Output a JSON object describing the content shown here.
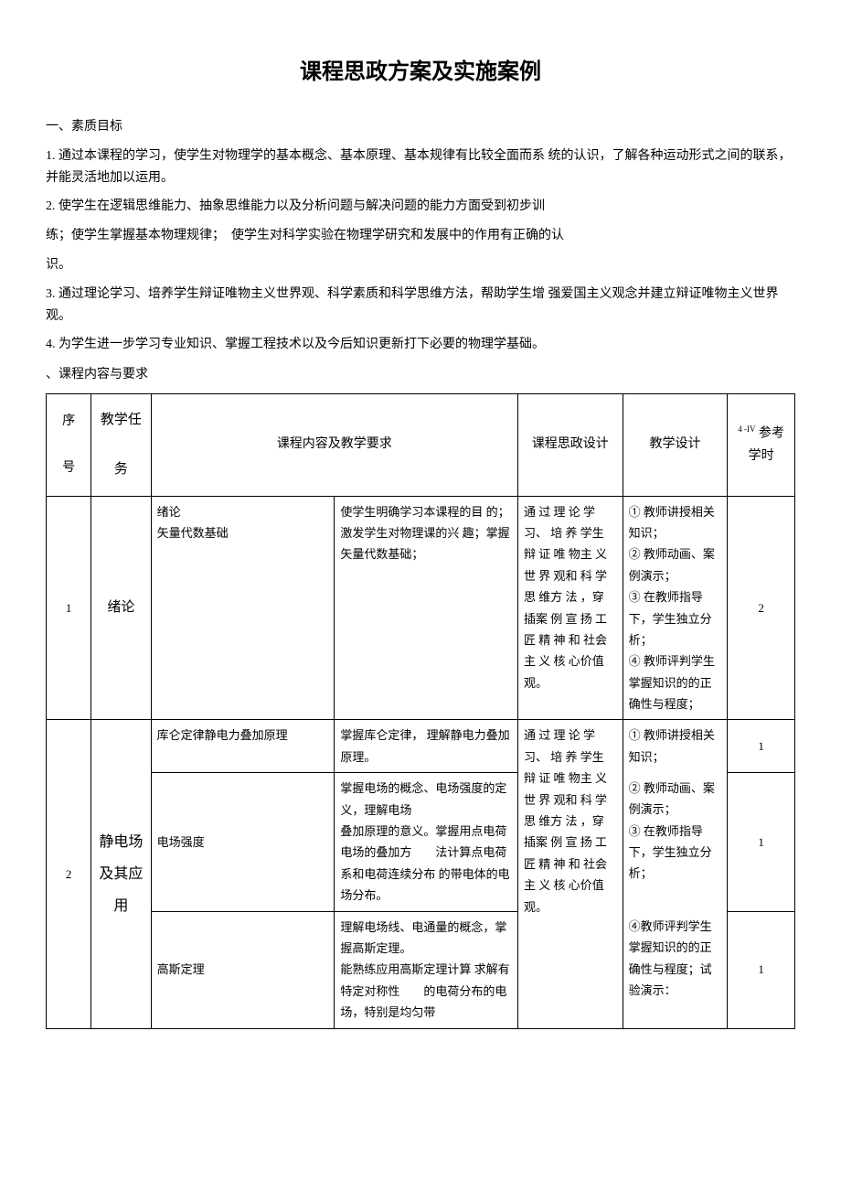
{
  "title": "课程思政方案及实施案例",
  "sections": {
    "s1_heading": "一、素质目标",
    "p1": "1. 通过本课程的学习，使学生对物理学的基本概念、基本原理、基本规律有比较全面而系 统的认识，了解各种运动形式之间的联系，并能灵活地加以运用。",
    "p2": "2. 使学生在逻辑思维能力、抽象思维能力以及分析问题与解决问题的能力方面受到初步训",
    "p2b": "练；使学生掌握基本物理规律；　使学生对科学实验在物理学研究和发展中的作用有正确的认",
    "p2c": "识。",
    "p3": "3. 通过理论学习、培养学生辩证唯物主义世界观、科学素质和科学思维方法，帮助学生增 强爱国主义观念并建立辩证唯物主义世界观。",
    "p4": "4. 为学生进一步学习专业知识、掌握工程技术以及今后知识更新打下必要的物理学基础。",
    "s2_heading": "、课程内容与要求"
  },
  "table": {
    "headers": {
      "seq": "序\n\n号",
      "task": "教学任\n\n务",
      "content": "课程内容及教学要求",
      "sizheng": "课程思政设计",
      "design": "教学设计",
      "hours_prefix": "4 -IV",
      "hours": "参考\n学时"
    },
    "rows": {
      "r1": {
        "seq": "1",
        "task": "绪论",
        "content_a": "绪论\n矢量代数基础",
        "content_b": "使学生明确学习本课程的目 的；激发学生对物理课的兴 趣；掌握矢量代数基础；",
        "sizheng": "通 过 理 论 学习、 培 养 学生 辩 证 唯 物主 义 世 界 观和 科 学 思 维方 法 ，穿 插案 例 宣 扬 工匠 精 神 和 社会 主 义 核 心价值观。",
        "design": "① 教师讲授相关知识；\n② 教师动画、案例演示；\n③ 在教师指导下，学生独立分析；\n④ 教师评判学生掌握知识的的正确性与程度；",
        "hours": "2"
      },
      "r2": {
        "seq": "2",
        "task": "静电场\n及其应\n用",
        "sub1_a": "库仑定律静电力叠加原理",
        "sub1_b": "掌握库仑定律， 理解静电力叠加原理。",
        "sub1_hours": "1",
        "sub2_a": "电场强度",
        "sub2_b": "掌握电场的概念、电场强度的定义，理解电场\n叠加原理的意义。掌握用点电荷电场的叠加方　　法计算点电荷系和电荷连续分布 的带电体的电场分布。",
        "sub2_hours": "1",
        "sub3_a": "高斯定理",
        "sub3_b": "理解电场线、电通量的概念，掌握高斯定理。\n能熟练应用高斯定理计算 求解有特定对称性　　的电荷分布的电场，特别是均匀带",
        "sub3_hours": "1",
        "sizheng": "通 过 理 论 学习、 培 养 学生 辩 证 唯 物主 义 世 界 观和 科 学 思 维方 法 ，穿 插案 例 宣 扬 工匠 精 神 和 社会 主 义 核 心价值观。",
        "design1": "① 教师讲授相关知识；",
        "design2": "② 教师动画、案例演示；\n③ 在教师指导下，学生独立分析；",
        "design3": "④教师评判学生掌握知识的的正确性与程度；试验演示："
      }
    }
  }
}
